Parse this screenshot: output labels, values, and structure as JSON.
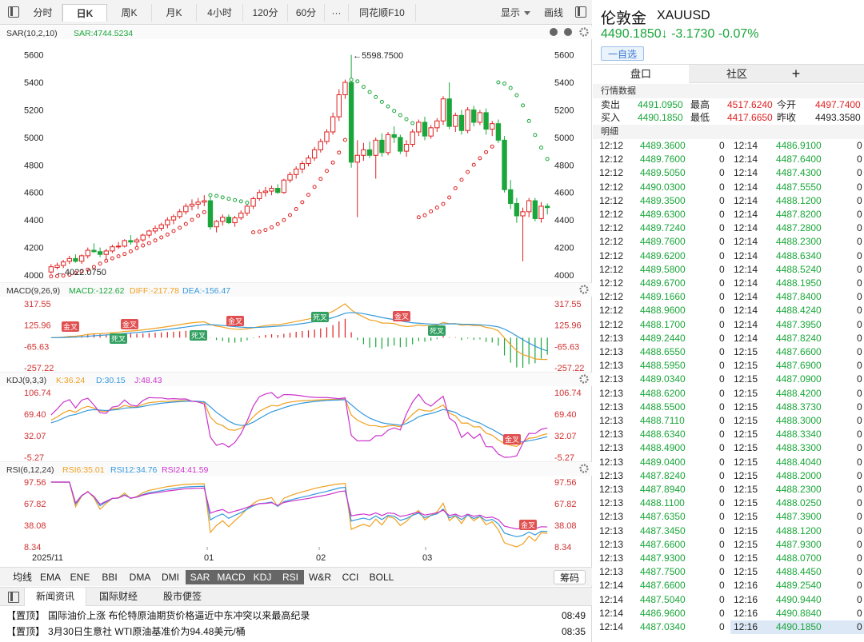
{
  "toolbar": {
    "periods": [
      "分时",
      "日K",
      "周K",
      "月K",
      "4小时",
      "120分",
      "60分",
      "···",
      "同花顺F10"
    ],
    "active": 1,
    "display_label": "显示",
    "draw_label": "画线"
  },
  "main_indicator": {
    "label": "SAR(10,2,10)",
    "value": "SAR:4744.5234"
  },
  "macd": {
    "label": "MACD(9,26,9)",
    "macd": "MACD:-122.62",
    "diff": "DIFF:-217.78",
    "dea": "DEA:-156.47",
    "ticks": [
      "317.55",
      "125.96",
      "-65.63",
      "-257.22"
    ]
  },
  "kdj": {
    "label": "KDJ(9,3,3)",
    "k": "K:36.24",
    "d": "D:30.15",
    "j": "J:48.43",
    "ticks": [
      "106.74",
      "69.40",
      "32.07",
      "-5.27"
    ]
  },
  "rsi": {
    "label": "RSI(6,12,24)",
    "rsi6": "RSI6:35.01",
    "rsi12": "RSI12:34.76",
    "rsi24": "RSI24:41.59",
    "ticks": [
      "97.56",
      "67.82",
      "38.08",
      "8.34"
    ]
  },
  "price_ticks": [
    "5600",
    "5400",
    "5200",
    "5000",
    "4800",
    "4600",
    "4400",
    "4200",
    "4000"
  ],
  "annotations": {
    "high": "5598.7500",
    "low": "4022.0750",
    "gold": "金叉",
    "dead": "死叉"
  },
  "date_labels": [
    "2025/11",
    "01",
    "02",
    "03"
  ],
  "colors": {
    "up": "#e02020",
    "down": "#1aa63a",
    "sar": "#1aa63a",
    "macd": "#e06020",
    "diff": "#f0a020",
    "dea": "#3399dd",
    "k": "#f0a020",
    "d": "#3399dd",
    "j": "#cc33cc",
    "rsi6": "#f0a020",
    "rsi12": "#3399dd",
    "rsi24": "#cc33cc"
  },
  "chart_data": {
    "type": "candlestick",
    "ylim": [
      4000,
      5650
    ],
    "candles": [
      [
        4022,
        4080,
        4010,
        4060
      ],
      [
        4055,
        4090,
        4040,
        4070
      ],
      [
        4070,
        4110,
        4050,
        4095
      ],
      [
        4100,
        4140,
        4080,
        4120
      ],
      [
        4120,
        4150,
        4090,
        4100
      ],
      [
        4100,
        4150,
        4080,
        4140
      ],
      [
        4140,
        4200,
        4120,
        4180
      ],
      [
        4180,
        4230,
        4160,
        4170
      ],
      [
        4170,
        4200,
        4130,
        4150
      ],
      [
        4150,
        4190,
        4110,
        4175
      ],
      [
        4175,
        4220,
        4160,
        4205
      ],
      [
        4205,
        4240,
        4190,
        4210
      ],
      [
        4210,
        4260,
        4200,
        4250
      ],
      [
        4250,
        4290,
        4220,
        4240
      ],
      [
        4240,
        4270,
        4200,
        4255
      ],
      [
        4255,
        4300,
        4240,
        4290
      ],
      [
        4290,
        4330,
        4270,
        4320
      ],
      [
        4320,
        4360,
        4300,
        4340
      ],
      [
        4340,
        4380,
        4320,
        4365
      ],
      [
        4365,
        4420,
        4340,
        4400
      ],
      [
        4400,
        4440,
        4370,
        4425
      ],
      [
        4425,
        4480,
        4410,
        4460
      ],
      [
        4460,
        4520,
        4440,
        4500
      ],
      [
        4500,
        4550,
        4470,
        4515
      ],
      [
        4515,
        4560,
        4480,
        4530
      ],
      [
        4530,
        4580,
        4500,
        4540
      ],
      [
        4540,
        4590,
        4330,
        4350
      ],
      [
        4350,
        4400,
        4310,
        4390
      ],
      [
        4390,
        4440,
        4360,
        4420
      ],
      [
        4420,
        4440,
        4370,
        4380
      ],
      [
        4380,
        4430,
        4350,
        4415
      ],
      [
        4415,
        4470,
        4400,
        4450
      ],
      [
        4450,
        4520,
        4430,
        4500
      ],
      [
        4500,
        4570,
        4480,
        4555
      ],
      [
        4555,
        4620,
        4540,
        4600
      ],
      [
        4600,
        4640,
        4570,
        4610
      ],
      [
        4610,
        4650,
        4580,
        4630
      ],
      [
        4630,
        4660,
        4590,
        4600
      ],
      [
        4600,
        4700,
        4590,
        4690
      ],
      [
        4690,
        4750,
        4670,
        4730
      ],
      [
        4730,
        4790,
        4700,
        4770
      ],
      [
        4770,
        4830,
        4740,
        4810
      ],
      [
        4810,
        4870,
        4790,
        4850
      ],
      [
        4850,
        4930,
        4830,
        4910
      ],
      [
        4910,
        4990,
        4890,
        4970
      ],
      [
        4970,
        5060,
        4950,
        5040
      ],
      [
        5040,
        5180,
        5020,
        5150
      ],
      [
        5150,
        5350,
        5120,
        5310
      ],
      [
        5310,
        5420,
        5280,
        5400
      ],
      [
        5400,
        5600,
        4780,
        4820
      ],
      [
        4820,
        4980,
        4420,
        4870
      ],
      [
        4870,
        4960,
        4830,
        4910
      ],
      [
        4910,
        4970,
        4850,
        4870
      ],
      [
        4870,
        5000,
        4700,
        4980
      ],
      [
        4980,
        5030,
        4860,
        4890
      ],
      [
        4890,
        5040,
        4870,
        5020
      ],
      [
        5020,
        5080,
        4960,
        5000
      ],
      [
        5000,
        5020,
        4880,
        4900
      ],
      [
        4900,
        4980,
        4860,
        4950
      ],
      [
        4950,
        5060,
        4930,
        5040
      ],
      [
        5040,
        5130,
        5010,
        5110
      ],
      [
        5110,
        5150,
        4980,
        5010
      ],
      [
        5010,
        5090,
        4990,
        5070
      ],
      [
        5070,
        5140,
        5040,
        5120
      ],
      [
        5120,
        5300,
        5090,
        5280
      ],
      [
        5280,
        5400,
        5060,
        5080
      ],
      [
        5080,
        5180,
        5040,
        5160
      ],
      [
        5160,
        5200,
        5020,
        5050
      ],
      [
        5050,
        5220,
        5030,
        5200
      ],
      [
        5200,
        5230,
        5080,
        5110
      ],
      [
        5110,
        5200,
        5090,
        5180
      ],
      [
        5180,
        5210,
        5020,
        5060
      ],
      [
        5060,
        5120,
        5010,
        5100
      ],
      [
        5100,
        5130,
        4960,
        4980
      ],
      [
        4980,
        5010,
        4600,
        4620
      ],
      [
        4620,
        4690,
        4480,
        4520
      ],
      [
        4520,
        4560,
        4380,
        4430
      ],
      [
        4430,
        4490,
        4100,
        4460
      ],
      [
        4460,
        4560,
        4420,
        4540
      ],
      [
        4540,
        4560,
        4390,
        4410
      ],
      [
        4410,
        4530,
        4380,
        4500
      ],
      [
        4500,
        4520,
        4440,
        4490
      ]
    ]
  },
  "quote": {
    "name": "伦敦金",
    "code": "XAUUSD",
    "price_line": "4490.1850↓ -3.1730 -0.07%",
    "add_label": "一自选",
    "tabs": [
      "盘口",
      "社区",
      "+"
    ],
    "section_market": "行情数据",
    "section_detail": "明细",
    "rows": [
      [
        "卖出",
        "4491.0950",
        "最高",
        "4517.6240",
        "今开",
        "4497.7400"
      ],
      [
        "买入",
        "4490.1850",
        "最低",
        "4417.6650",
        "昨收",
        "4493.3580"
      ]
    ]
  },
  "ticks_left": [
    [
      "12:12",
      "4489.3600",
      "0"
    ],
    [
      "12:12",
      "4489.7600",
      "0"
    ],
    [
      "12:12",
      "4489.5050",
      "0"
    ],
    [
      "12:12",
      "4490.0300",
      "0"
    ],
    [
      "12:12",
      "4489.3500",
      "0"
    ],
    [
      "12:12",
      "4489.6300",
      "0"
    ],
    [
      "12:12",
      "4489.7240",
      "0"
    ],
    [
      "12:12",
      "4489.7600",
      "0"
    ],
    [
      "12:12",
      "4489.6200",
      "0"
    ],
    [
      "12:12",
      "4489.5800",
      "0"
    ],
    [
      "12:12",
      "4489.6700",
      "0"
    ],
    [
      "12:12",
      "4489.1660",
      "0"
    ],
    [
      "12:12",
      "4488.9600",
      "0"
    ],
    [
      "12:12",
      "4488.1700",
      "0"
    ],
    [
      "12:13",
      "4489.2440",
      "0"
    ],
    [
      "12:13",
      "4488.6550",
      "0"
    ],
    [
      "12:13",
      "4488.5950",
      "0"
    ],
    [
      "12:13",
      "4489.0340",
      "0"
    ],
    [
      "12:13",
      "4488.6200",
      "0"
    ],
    [
      "12:13",
      "4488.5500",
      "0"
    ],
    [
      "12:13",
      "4488.7110",
      "0"
    ],
    [
      "12:13",
      "4488.6340",
      "0"
    ],
    [
      "12:13",
      "4488.4900",
      "0"
    ],
    [
      "12:13",
      "4489.0400",
      "0"
    ],
    [
      "12:13",
      "4487.8240",
      "0"
    ],
    [
      "12:13",
      "4487.8940",
      "0"
    ],
    [
      "12:13",
      "4488.1100",
      "0"
    ],
    [
      "12:13",
      "4487.6350",
      "0"
    ],
    [
      "12:13",
      "4487.3450",
      "0"
    ],
    [
      "12:13",
      "4487.6600",
      "0"
    ],
    [
      "12:13",
      "4487.9300",
      "0"
    ],
    [
      "12:13",
      "4487.7500",
      "0"
    ],
    [
      "12:14",
      "4487.6600",
      "0"
    ],
    [
      "12:14",
      "4487.5040",
      "0"
    ],
    [
      "12:14",
      "4486.9600",
      "0"
    ],
    [
      "12:14",
      "4487.0340",
      "0"
    ]
  ],
  "ticks_right": [
    [
      "12:14",
      "4486.9100",
      "0"
    ],
    [
      "12:14",
      "4487.6400",
      "0"
    ],
    [
      "12:14",
      "4487.4300",
      "0"
    ],
    [
      "12:14",
      "4487.5550",
      "0"
    ],
    [
      "12:14",
      "4488.1200",
      "0"
    ],
    [
      "12:14",
      "4487.8200",
      "0"
    ],
    [
      "12:14",
      "4487.2800",
      "0"
    ],
    [
      "12:14",
      "4488.2300",
      "0"
    ],
    [
      "12:14",
      "4488.6340",
      "0"
    ],
    [
      "12:14",
      "4488.5240",
      "0"
    ],
    [
      "12:14",
      "4488.1950",
      "0"
    ],
    [
      "12:14",
      "4487.8400",
      "0"
    ],
    [
      "12:14",
      "4488.4240",
      "0"
    ],
    [
      "12:14",
      "4487.3950",
      "0"
    ],
    [
      "12:14",
      "4487.8240",
      "0"
    ],
    [
      "12:15",
      "4487.6600",
      "0"
    ],
    [
      "12:15",
      "4487.6900",
      "0"
    ],
    [
      "12:15",
      "4487.0900",
      "0"
    ],
    [
      "12:15",
      "4488.4200",
      "0"
    ],
    [
      "12:15",
      "4488.3730",
      "0"
    ],
    [
      "12:15",
      "4488.3000",
      "0"
    ],
    [
      "12:15",
      "4488.3340",
      "0"
    ],
    [
      "12:15",
      "4488.3300",
      "0"
    ],
    [
      "12:15",
      "4488.4040",
      "0"
    ],
    [
      "12:15",
      "4488.2000",
      "0"
    ],
    [
      "12:15",
      "4488.2300",
      "0"
    ],
    [
      "12:15",
      "4488.0250",
      "0"
    ],
    [
      "12:15",
      "4487.3900",
      "0"
    ],
    [
      "12:15",
      "4488.1200",
      "0"
    ],
    [
      "12:15",
      "4487.9300",
      "0"
    ],
    [
      "12:15",
      "4488.0700",
      "0"
    ],
    [
      "12:15",
      "4488.4450",
      "0"
    ],
    [
      "12:16",
      "4489.2540",
      "0"
    ],
    [
      "12:16",
      "4490.9440",
      "0"
    ],
    [
      "12:16",
      "4490.8840",
      "0"
    ],
    [
      "12:16",
      "4490.1850",
      "0"
    ]
  ],
  "indicators": [
    "均线",
    "EMA",
    "ENE",
    "BBI",
    "DMA",
    "DMI",
    "SAR",
    "MACD",
    "KDJ",
    "RSI",
    "W&R",
    "CCI",
    "BOLL"
  ],
  "indicators_on": [
    "SAR",
    "MACD",
    "KDJ",
    "RSI"
  ],
  "chips_label": "筹码",
  "news_tabs": [
    "新闻资讯",
    "国际财经",
    "股市便签"
  ],
  "news": [
    {
      "tag": "【置顶】",
      "text": "国际油价上涨 布伦特原油期货价格逼近中东冲突以来最高纪录",
      "time": "08:49"
    },
    {
      "tag": "【置顶】",
      "text": "3月30日生意社 WTI原油基准价为94.48美元/桶",
      "time": "08:35"
    }
  ]
}
